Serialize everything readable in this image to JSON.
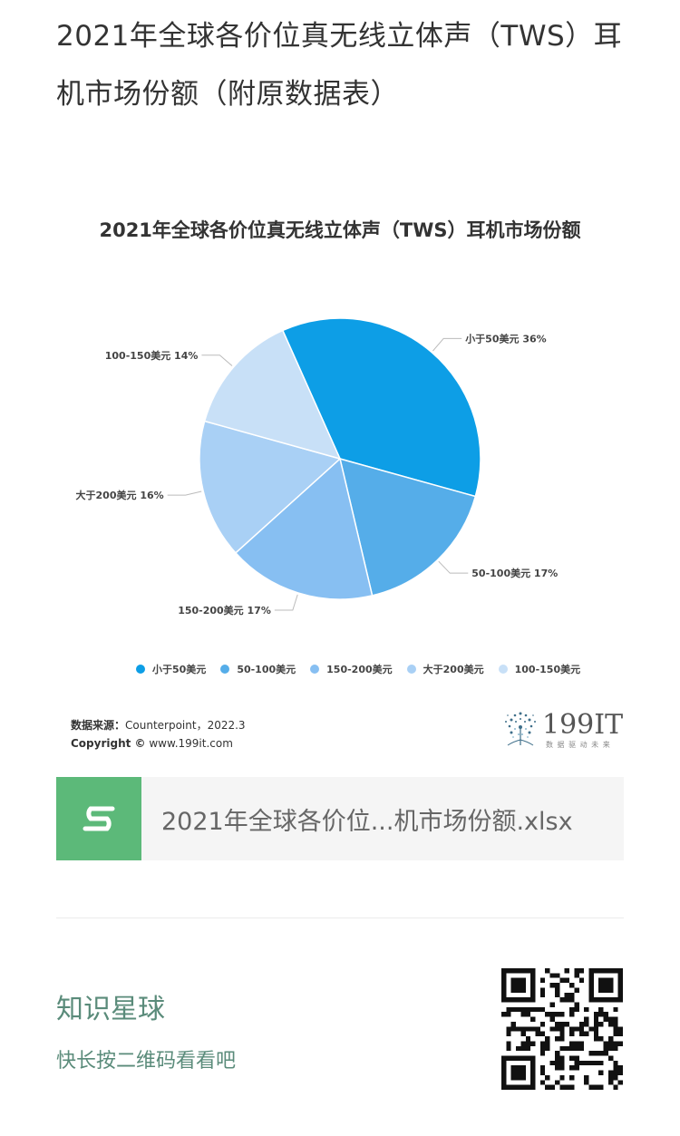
{
  "article": {
    "title": "2021年全球各价位真无线立体声（TWS）耳机市场份额（附原数据表）"
  },
  "colors": {
    "slice_1": "#0d9ee6",
    "slice_2": "#55ade9",
    "slice_3": "#87bff2",
    "slice_4": "#a9d0f5",
    "slice_5": "#c8e0f7"
  },
  "chart_data": {
    "type": "pie",
    "title": "2021年全球各价位真无线立体声（TWS）耳机市场份额",
    "categories": [
      "小于50美元",
      "50-100美元",
      "150-200美元",
      "大于200美元",
      "100-150美元"
    ],
    "values": [
      36,
      17,
      17,
      16,
      14
    ],
    "data_labels": [
      "小于50美元 36%",
      "50-100美元 17%",
      "150-200美元 17%",
      "大于200美元 16%",
      "100-150美元 14%"
    ],
    "legend": [
      "小于50美元",
      "50-100美元",
      "150-200美元",
      "大于200美元",
      "100-150美元"
    ],
    "legend_position": "bottom"
  },
  "source": {
    "label": "数据来源：",
    "value": "Counterpoint，2022.3",
    "copyright_label": "Copyright ©",
    "copyright_value": " www.199it.com"
  },
  "logo": {
    "text": "199IT",
    "tagline": "数 据 驱 动 未 来"
  },
  "attachment": {
    "icon": "sheet-file-icon",
    "filename": "2021年全球各价位...机市场份额.xlsx"
  },
  "footer": {
    "title": "知识星球",
    "subtitle": "快长按二维码看看吧",
    "qr_icon": "qr-code-icon"
  }
}
